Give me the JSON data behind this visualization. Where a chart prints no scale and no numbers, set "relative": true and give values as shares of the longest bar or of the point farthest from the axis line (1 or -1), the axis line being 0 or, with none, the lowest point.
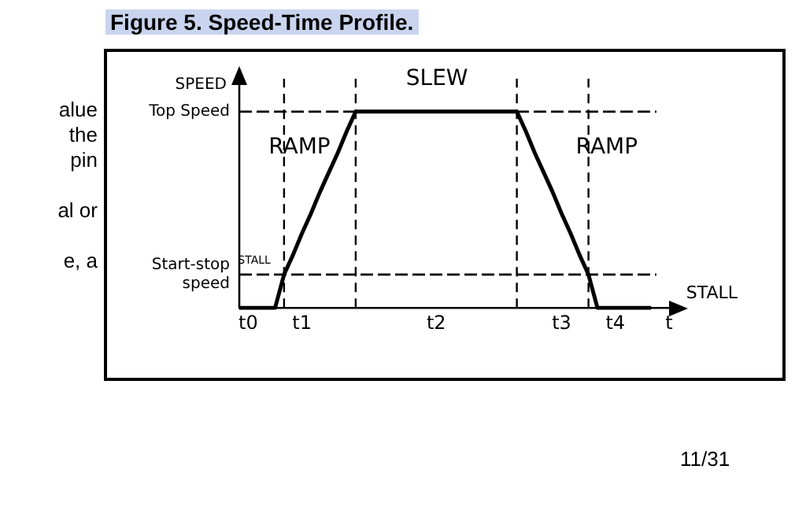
{
  "chart_data": {
    "type": "line",
    "title": "Figure 5. Speed-Time Profile.",
    "ylabel": "SPEED",
    "relative": true,
    "categories": [
      null,
      "t0",
      null,
      null,
      null,
      null,
      null,
      "t1",
      null,
      null,
      null,
      null,
      null,
      null,
      null,
      null,
      null,
      null,
      null,
      null,
      null,
      null,
      "t2",
      null,
      null,
      null,
      null,
      null,
      null,
      null,
      null,
      null,
      null,
      null,
      null,
      null,
      "t3",
      null,
      null,
      null,
      null,
      null,
      "t4",
      null,
      null,
      null,
      null,
      null,
      "t"
    ],
    "series": [
      {
        "color": "#000000",
        "values": [
          0,
          0,
          0,
          0,
          0,
          0.17,
          0.27,
          0.38,
          0.48,
          0.59,
          0.69,
          0.79,
          0.9,
          1,
          1,
          1,
          1,
          1,
          1,
          1,
          1,
          1,
          1,
          1,
          1,
          1,
          1,
          1,
          1,
          1,
          1,
          1,
          0.9,
          0.79,
          0.69,
          0.59,
          0.48,
          0.38,
          0.27,
          0.17,
          0,
          0,
          0,
          0,
          0,
          0,
          0,
          null,
          null
        ]
      }
    ],
    "ref_lines": [
      {
        "axis": "y",
        "value": 1,
        "label": "Top Speed",
        "line_style": "dashed"
      },
      {
        "axis": "y",
        "value": 0.17,
        "label": "Start-stop speed",
        "line_style": "dashed"
      }
    ],
    "annotations": [
      "RAMP",
      "SLEW",
      "RAMP",
      "STALL",
      "STALL",
      "alue",
      "the",
      "pin",
      "al or",
      "e, a",
      "11/31"
    ],
    "grid": false,
    "legend": false,
    "marker": "none",
    "line_style": "solid"
  }
}
